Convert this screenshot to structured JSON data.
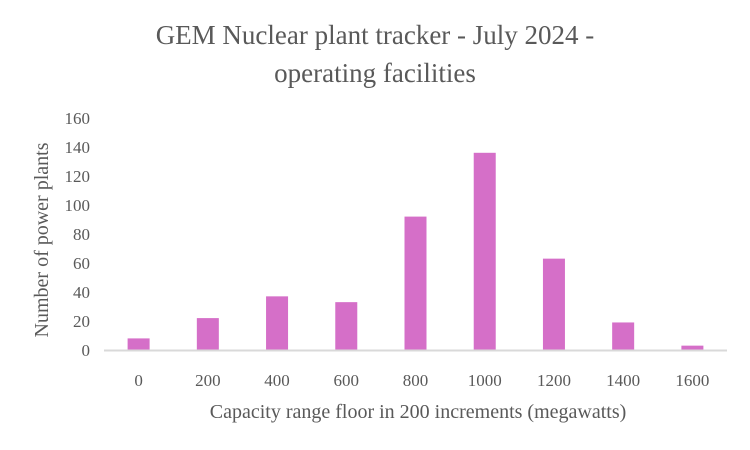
{
  "chart_data": {
    "type": "bar",
    "title_lines": [
      "GEM Nuclear plant tracker - July 2024 -",
      "operating facilities"
    ],
    "xlabel": "Capacity range floor in 200 increments (megawatts)",
    "ylabel": "Number of power plants",
    "categories": [
      "0",
      "200",
      "400",
      "600",
      "800",
      "1000",
      "1200",
      "1400",
      "1600"
    ],
    "values": [
      8,
      22,
      37,
      33,
      92,
      136,
      63,
      19,
      3
    ],
    "ylim": [
      0,
      160
    ],
    "yticks": [
      "0",
      "20",
      "40",
      "60",
      "80",
      "100",
      "120",
      "140",
      "160"
    ],
    "grid": false,
    "legend": "none",
    "bar_color": "#D56FC8",
    "axis_color": "#D9D9D9"
  }
}
